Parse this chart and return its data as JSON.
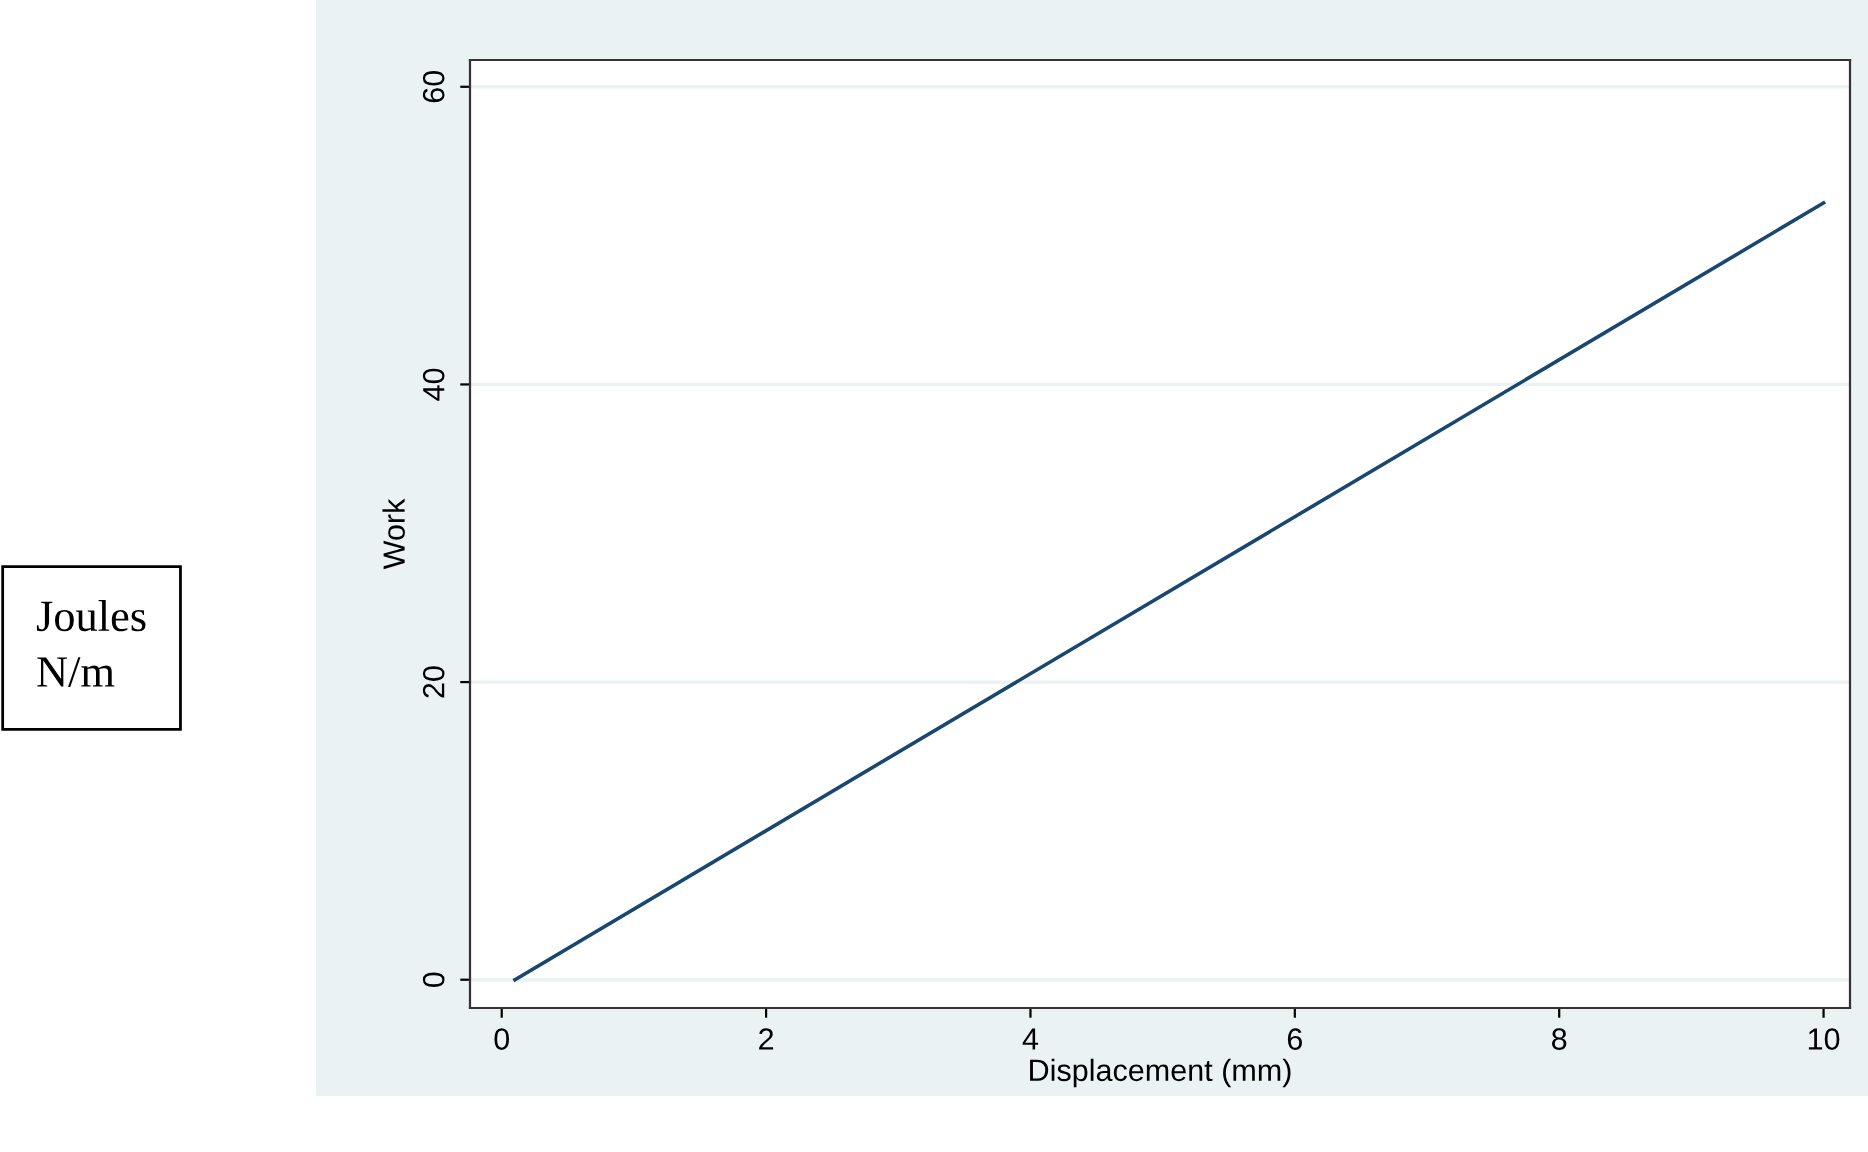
{
  "chart_data": {
    "type": "line",
    "xlabel": "Displacement (mm)",
    "ylabel": "Work",
    "annotations": [
      "Joules\nN/m"
    ],
    "x": [
      0.1,
      10
    ],
    "series": [
      {
        "color": "#1a476f",
        "values": [
          0,
          52.2
        ]
      }
    ],
    "xlim": [
      -0.24,
      10.2
    ],
    "xticks": [
      0,
      2,
      4,
      6,
      8,
      10
    ],
    "ylim": [
      -1.9,
      61.8
    ],
    "yticks": [
      0,
      20,
      40,
      60
    ],
    "grid": "y",
    "legend": false
  }
}
